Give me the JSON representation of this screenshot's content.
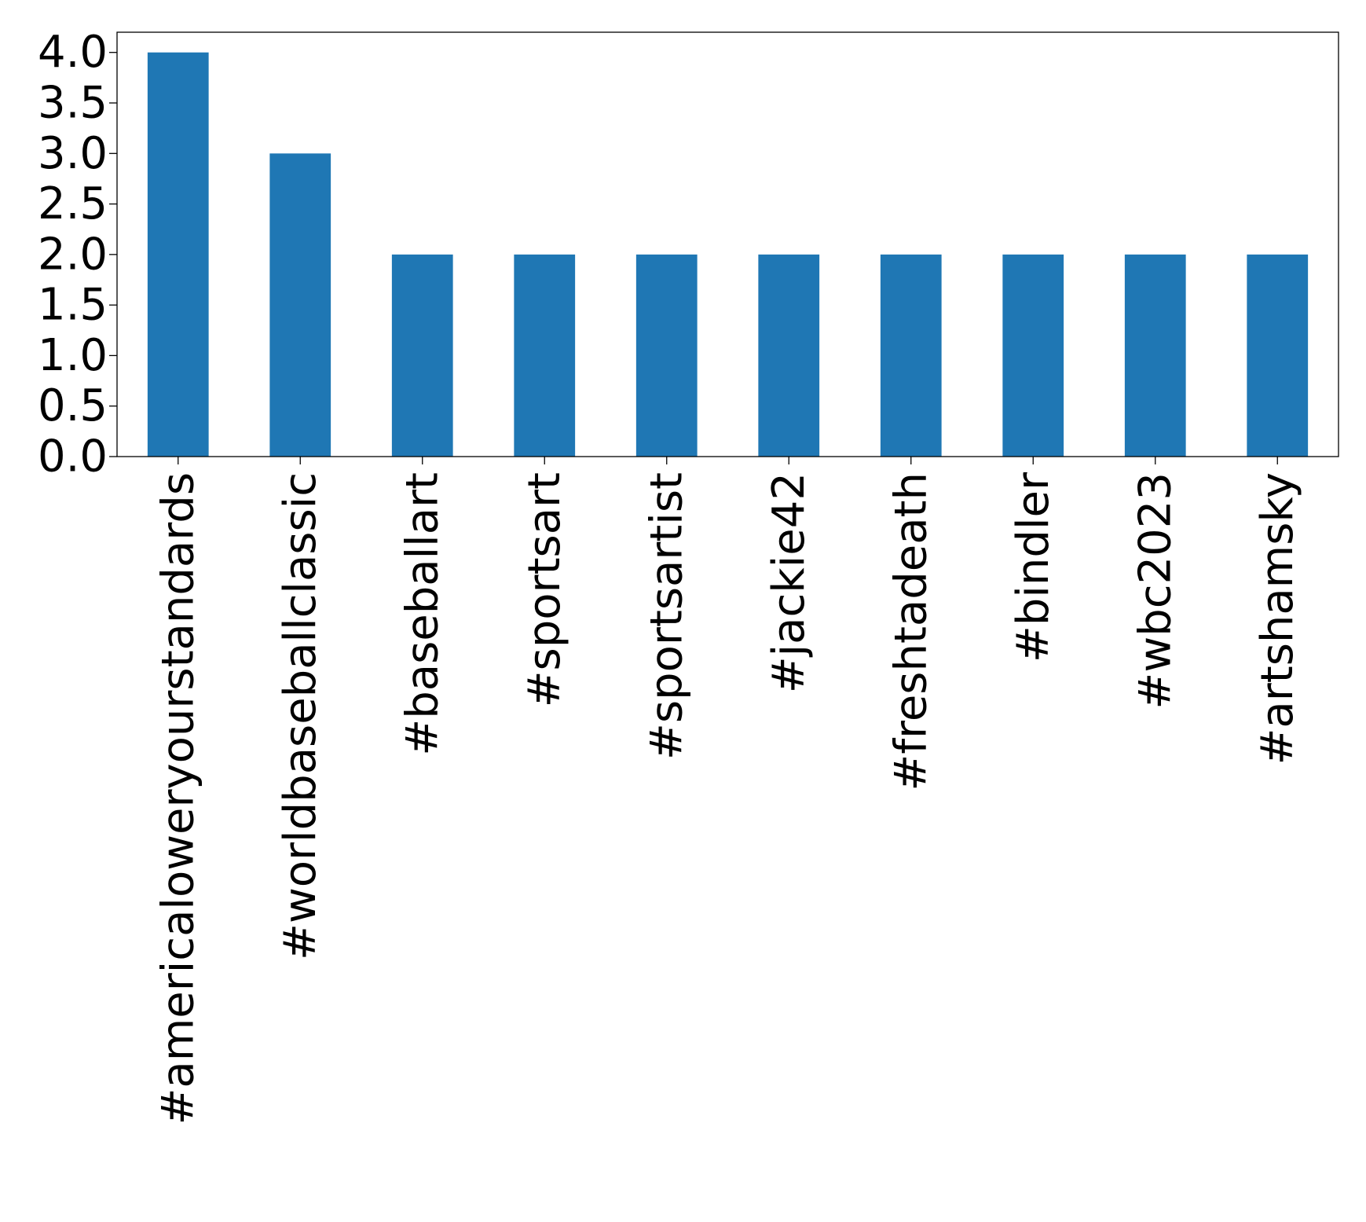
{
  "chart_data": {
    "type": "bar",
    "categories": [
      "#americaloweryourstandards",
      "#worldbaseballclassic",
      "#baseballart",
      "#sportsart",
      "#sportsartist",
      "#jackie42",
      "#freshtadeath",
      "#bindler",
      "#wbc2023",
      "#artshamsky"
    ],
    "values": [
      4,
      3,
      2,
      2,
      2,
      2,
      2,
      2,
      2,
      2
    ],
    "title": "",
    "xlabel": "",
    "ylabel": "",
    "ylim": [
      0,
      4.2
    ],
    "yticks": [
      "0.0",
      "0.5",
      "1.0",
      "1.5",
      "2.0",
      "2.5",
      "3.0",
      "3.5",
      "4.0"
    ],
    "bar_color": "#1f77b4",
    "grid": false,
    "legend": "none"
  }
}
